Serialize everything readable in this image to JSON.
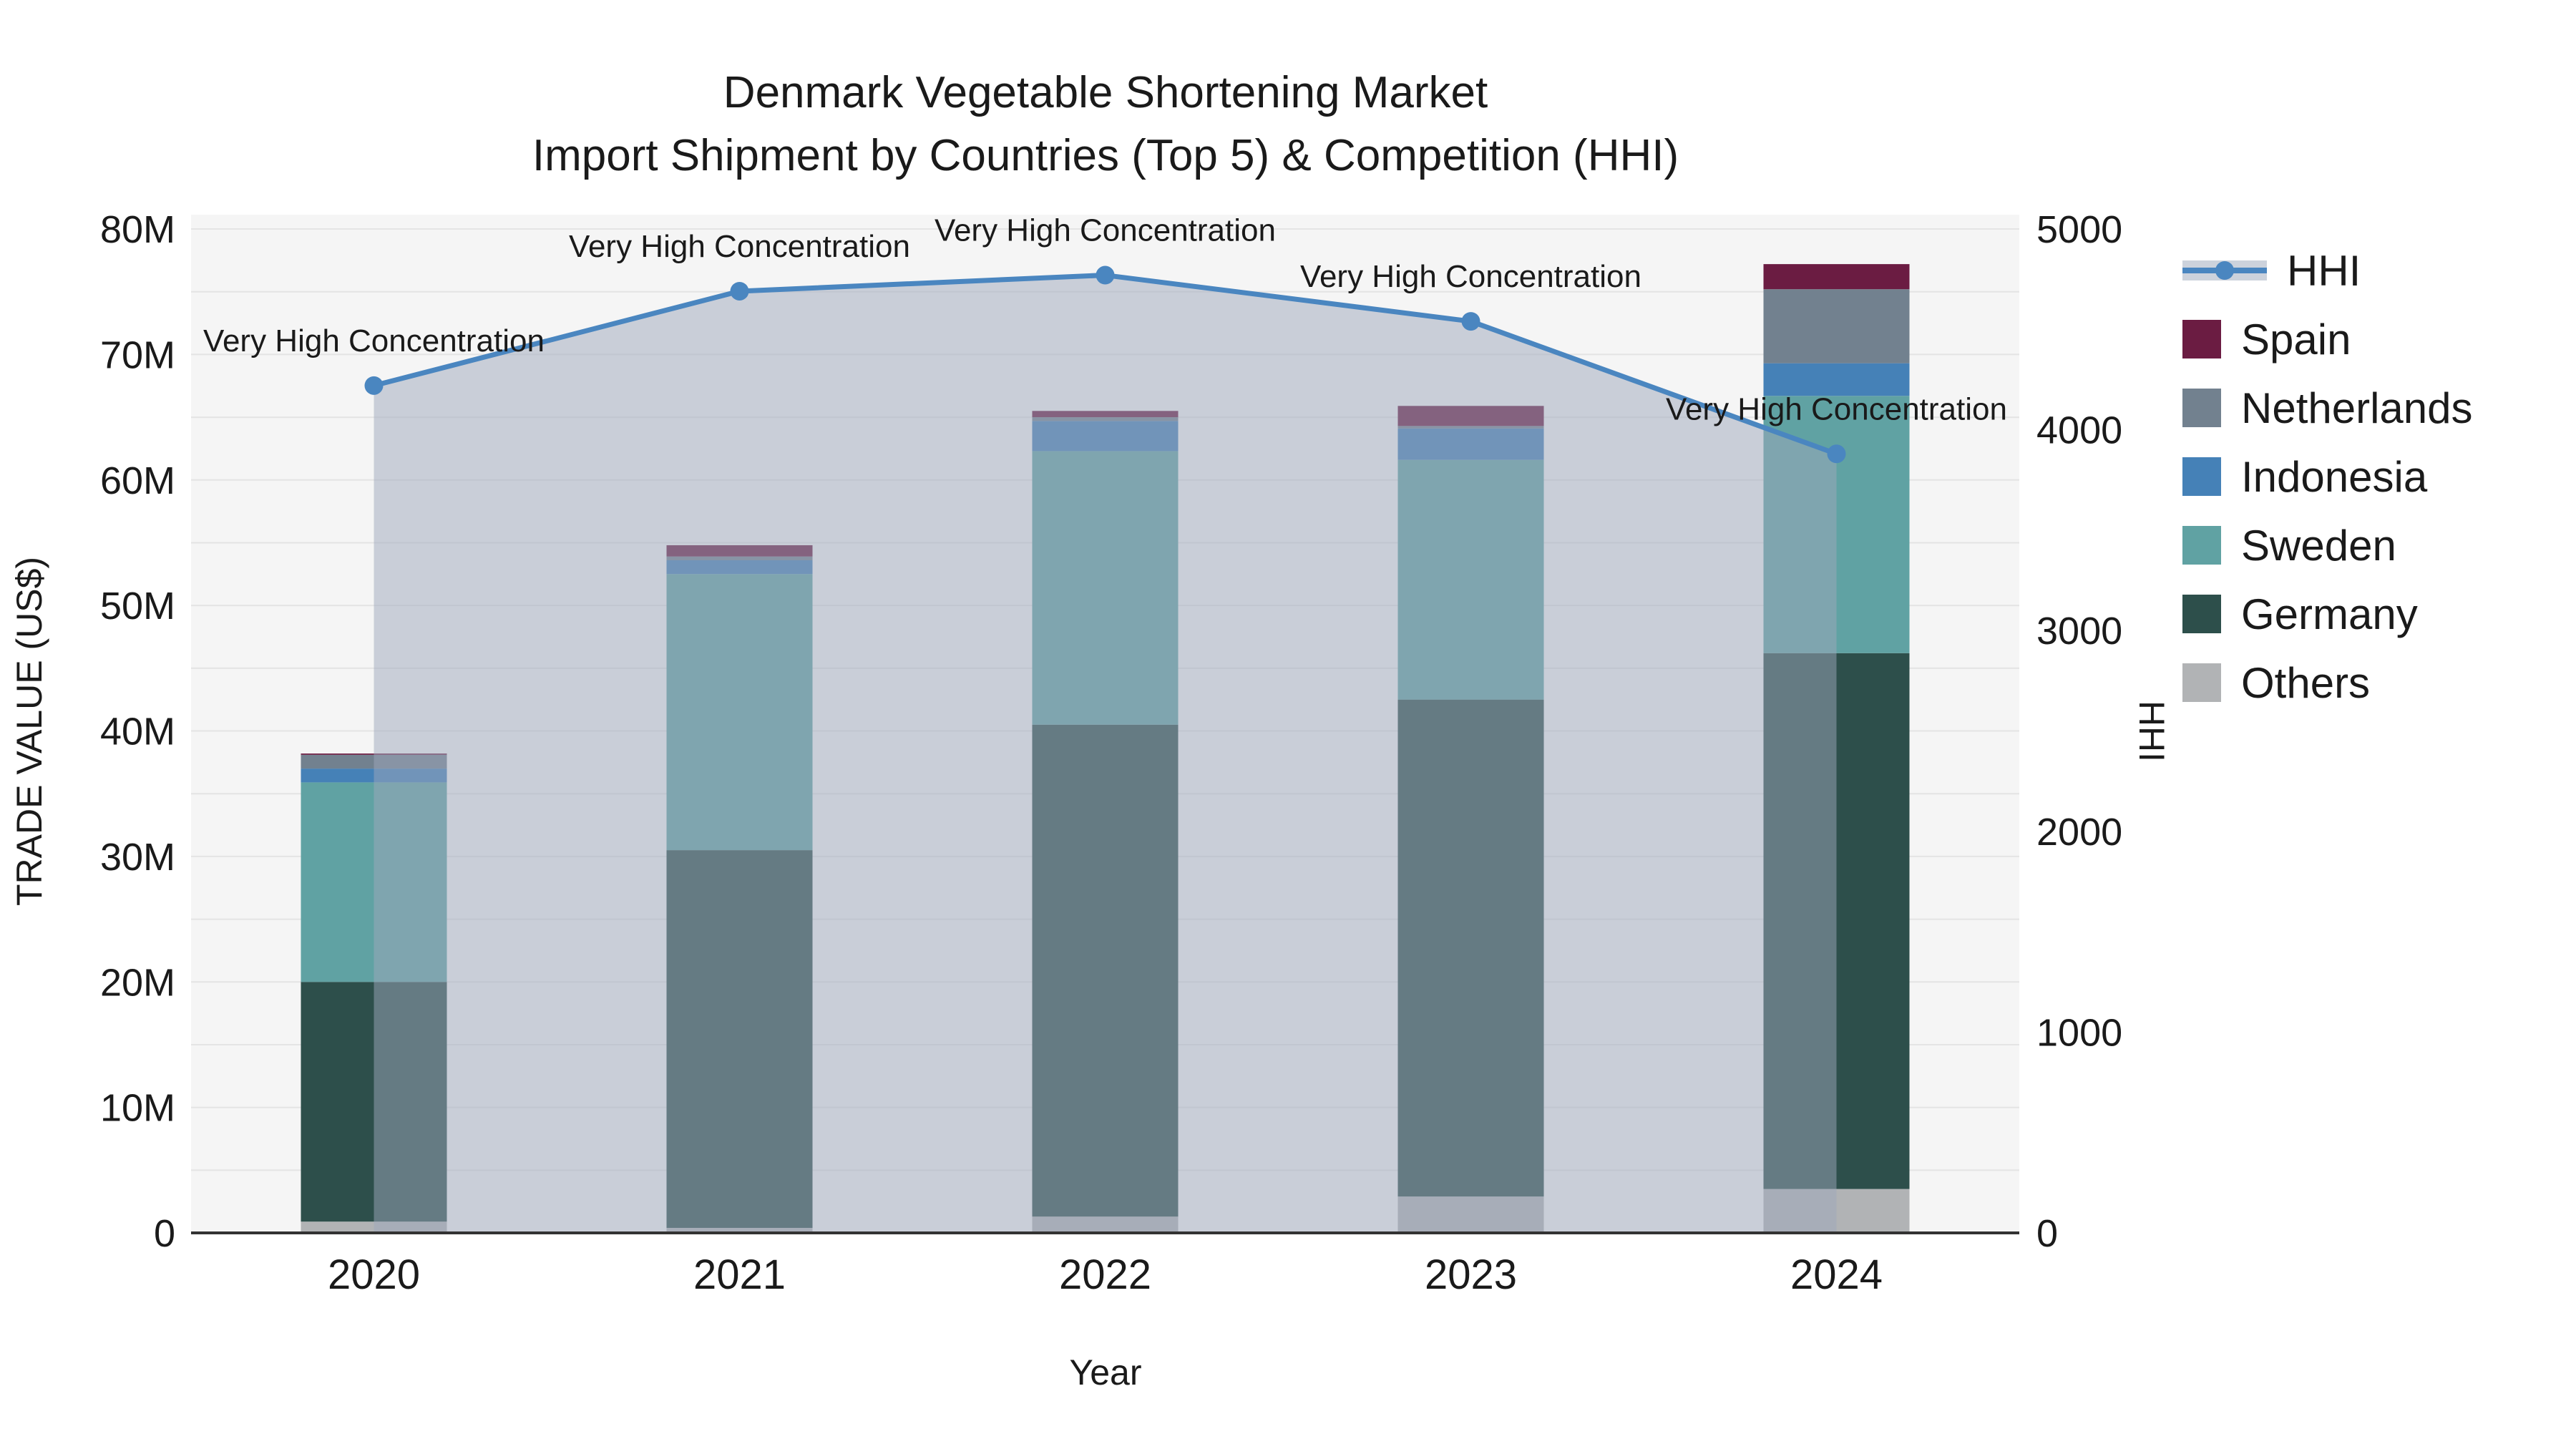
{
  "title": {
    "line1": "Denmark Vegetable Shortening Market",
    "line2": "Import Shipment by Countries (Top 5) & Competition (HHI)"
  },
  "axes": {
    "x_label": "Year",
    "y_left_label": "TRADE VALUE (US$)",
    "y_right_label": "HHI",
    "y_left_ticks": [
      {
        "value": 0,
        "label": "0"
      },
      {
        "value": 10,
        "label": "10M"
      },
      {
        "value": 20,
        "label": "20M"
      },
      {
        "value": 30,
        "label": "30M"
      },
      {
        "value": 40,
        "label": "40M"
      },
      {
        "value": 50,
        "label": "50M"
      },
      {
        "value": 60,
        "label": "60M"
      },
      {
        "value": 70,
        "label": "70M"
      },
      {
        "value": 80,
        "label": "80M"
      }
    ],
    "y_right_ticks": [
      {
        "value": 0,
        "label": "0"
      },
      {
        "value": 1000,
        "label": "1000"
      },
      {
        "value": 2000,
        "label": "2000"
      },
      {
        "value": 3000,
        "label": "3000"
      },
      {
        "value": 4000,
        "label": "4000"
      },
      {
        "value": 5000,
        "label": "5000"
      }
    ],
    "y_left_max": 80,
    "y_right_max": 5000,
    "grid_step_left": 5
  },
  "legend": {
    "items": [
      {
        "key": "hhi",
        "label": "HHI",
        "type": "line"
      },
      {
        "key": "spain",
        "label": "Spain",
        "type": "box"
      },
      {
        "key": "netherlands",
        "label": "Netherlands",
        "type": "box"
      },
      {
        "key": "indonesia",
        "label": "Indonesia",
        "type": "box"
      },
      {
        "key": "sweden",
        "label": "Sweden",
        "type": "box"
      },
      {
        "key": "germany",
        "label": "Germany",
        "type": "box"
      },
      {
        "key": "others",
        "label": "Others",
        "type": "box"
      }
    ]
  },
  "colors": {
    "spain": "#6b1c42",
    "netherlands": "#72818f",
    "indonesia": "#4581b7",
    "sweden": "#60a2a3",
    "germany": "#2d4f4b",
    "others": "#b1b3b5",
    "hhi": "#4a86c0",
    "hhi_fill": "rgba(157,167,187,0.5)",
    "hhi_band": "#ccd2dc",
    "plot_bg": "#f5f5f5",
    "grid": "#e4e4e4",
    "axis_line": "#333333"
  },
  "chart_data": {
    "type": "bar",
    "subtype": "stacked-bars-with-line",
    "categories": [
      "2020",
      "2021",
      "2022",
      "2023",
      "2024"
    ],
    "unit_left": "M US$",
    "series": [
      {
        "key": "others",
        "name": "Others",
        "values": [
          0.9,
          0.4,
          1.3,
          2.9,
          3.5
        ]
      },
      {
        "key": "germany",
        "name": "Germany",
        "values": [
          19.1,
          30.1,
          39.2,
          39.6,
          42.7
        ]
      },
      {
        "key": "sweden",
        "name": "Sweden",
        "values": [
          15.9,
          22.0,
          21.8,
          19.1,
          20.5
        ]
      },
      {
        "key": "indonesia",
        "name": "Indonesia",
        "values": [
          1.1,
          1.1,
          2.4,
          2.5,
          2.6
        ]
      },
      {
        "key": "netherlands",
        "name": "Netherlands",
        "values": [
          1.1,
          0.3,
          0.3,
          0.2,
          5.9
        ]
      },
      {
        "key": "spain",
        "name": "Spain",
        "values": [
          0.1,
          0.9,
          0.5,
          1.6,
          2.0
        ]
      }
    ],
    "bar_totals": [
      38.2,
      54.8,
      65.5,
      65.9,
      77.2
    ],
    "line": {
      "key": "hhi",
      "name": "HHI",
      "axis": "right",
      "values": [
        4220,
        4690,
        4770,
        4540,
        3880
      ],
      "annotation": "Very High Concentration"
    },
    "ylim_left": [
      0,
      80
    ],
    "ylim_right": [
      0,
      5000
    ],
    "grid": true,
    "legend_position": "right"
  }
}
